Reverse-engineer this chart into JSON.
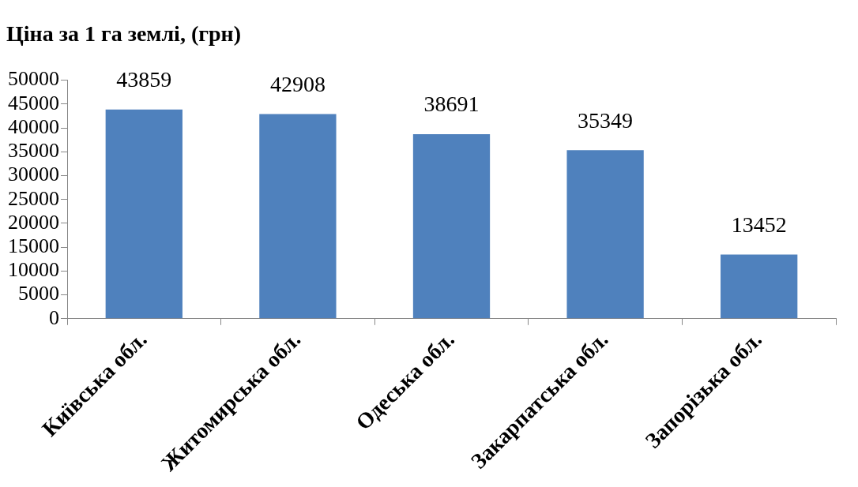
{
  "chart_data": {
    "type": "bar",
    "title": "Ціна за 1 га землі, (грн)",
    "categories": [
      "Київська обл.",
      "Житомирська обл.",
      "Одеська обл.",
      "Закарпатська обл.",
      "Запорізька обл."
    ],
    "values": [
      43859,
      42908,
      38691,
      35349,
      13452
    ],
    "color": "#4f81bd",
    "ylim": [
      0,
      50000
    ],
    "yticks": [
      0,
      5000,
      10000,
      15000,
      20000,
      25000,
      30000,
      35000,
      40000,
      45000,
      50000
    ],
    "data_labels": true,
    "legend": false
  }
}
